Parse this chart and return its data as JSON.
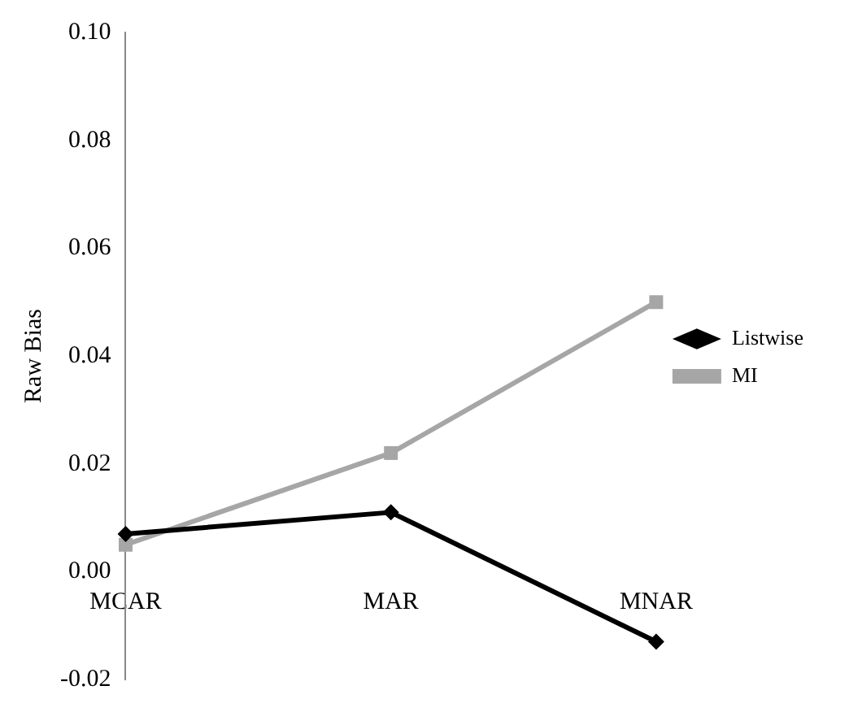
{
  "chart_data": {
    "type": "line",
    "ylabel": "Raw Bias",
    "categories": [
      "MCAR",
      "MAR",
      "MNAR"
    ],
    "series": [
      {
        "name": "Listwise",
        "color": "#000000",
        "values": [
          0.007,
          0.011,
          -0.013
        ],
        "marker": "diamond"
      },
      {
        "name": "MI",
        "color": "#a6a6a6",
        "values": [
          0.005,
          0.022,
          0.05
        ],
        "marker": "square"
      }
    ],
    "ylim": [
      -0.02,
      0.1
    ],
    "yticks": [
      {
        "value": -0.02,
        "label": "-0.02"
      },
      {
        "value": 0,
        "label": "0.00"
      },
      {
        "value": 0.02,
        "label": "0.02"
      },
      {
        "value": 0.04,
        "label": "0.04"
      },
      {
        "value": 0.06,
        "label": "0.06"
      },
      {
        "value": 0.08,
        "label": "0.08"
      },
      {
        "value": 0.1,
        "label": "0.10"
      }
    ],
    "grid": false,
    "legend": "right",
    "line_style": "solid"
  }
}
